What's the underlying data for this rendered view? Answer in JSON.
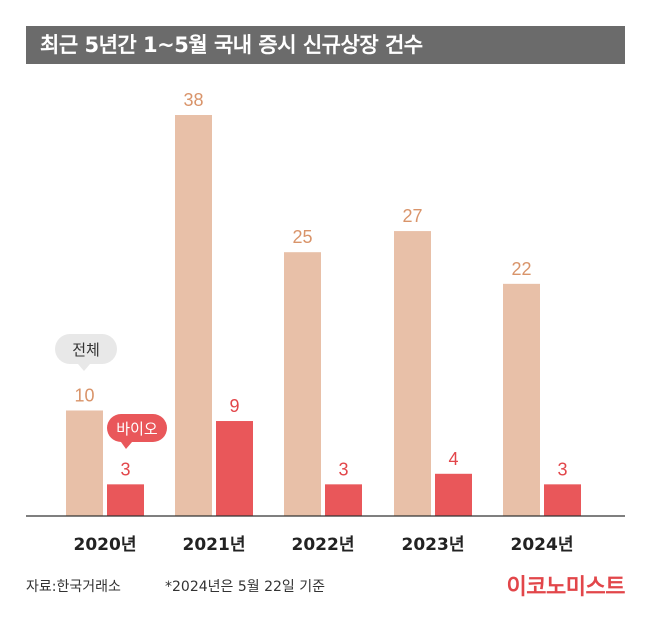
{
  "title": "최근 5년간 1~5월 국내 증시 신규상장 건수",
  "colors": {
    "total": "#e8c0a8",
    "bio": "#e9575a",
    "total_label": "#d9946a",
    "bio_label": "#e2464a",
    "title_bg": "#6b6b6b"
  },
  "chart_data": {
    "type": "bar",
    "categories": [
      "2020년",
      "2021년",
      "2022년",
      "2023년",
      "2024년"
    ],
    "series": [
      {
        "name": "전체",
        "values": [
          10,
          38,
          25,
          27,
          22
        ]
      },
      {
        "name": "바이오",
        "values": [
          3,
          9,
          3,
          4,
          3
        ]
      }
    ],
    "ylim": [
      0,
      38
    ]
  },
  "footer": {
    "source": "자료:한국거래소",
    "note": "*2024년은 5월 22일 기준",
    "brand": "이코노미스트"
  }
}
